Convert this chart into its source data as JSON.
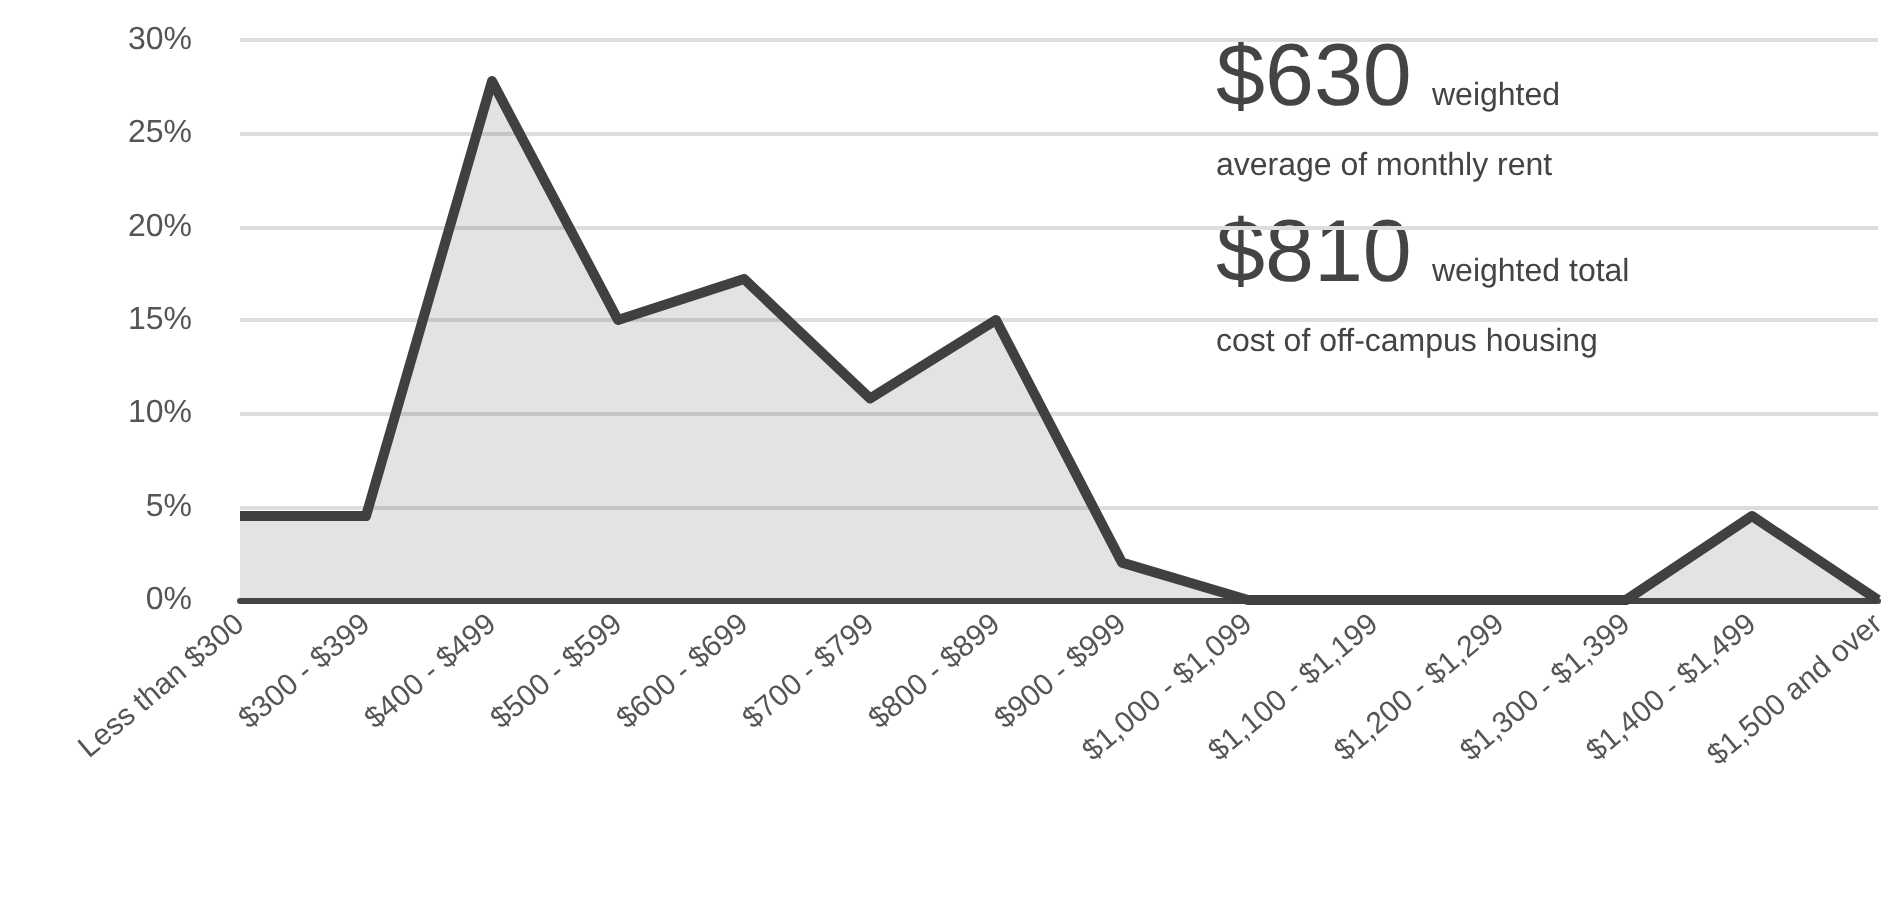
{
  "chart_data": {
    "type": "area",
    "categories": [
      "Less than $300",
      "$300 - $399",
      "$400 - $499",
      "$500 - $599",
      "$600 - $699",
      "$700 - $799",
      "$800 - $899",
      "$900 - $999",
      "$1,000 - $1,099",
      "$1,100 - $1,199",
      "$1,200 - $1,299",
      "$1,300 - $1,399",
      "$1,400 - $1,499",
      "$1,500 and over"
    ],
    "series": [
      {
        "color": "#404040",
        "values": [
          4.5,
          4.5,
          27.8,
          15,
          17.2,
          10.8,
          15,
          2,
          0,
          0,
          0,
          0,
          4.5,
          0
        ]
      }
    ],
    "ylim": [
      0,
      30
    ],
    "yticks": [
      {
        "value": 0,
        "label": "0%"
      },
      {
        "value": 5,
        "label": "5%"
      },
      {
        "value": 10,
        "label": "10%"
      },
      {
        "value": 15,
        "label": "15%"
      },
      {
        "value": 20,
        "label": "20%"
      },
      {
        "value": 25,
        "label": "25%"
      },
      {
        "value": 30,
        "label": "30%"
      }
    ],
    "grid": "y",
    "marker": "none",
    "line_style": "solid",
    "annotations": [
      "$630",
      "weighted",
      "average of monthly rent",
      "$810",
      "weighted total",
      "cost of off-campus housing"
    ]
  }
}
